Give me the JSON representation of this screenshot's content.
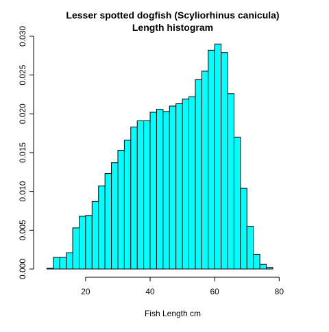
{
  "chart_data": {
    "type": "bar",
    "subtype": "histogram",
    "title": "Lesser spotted dogfish (Scyliorhinus canicula)",
    "subtitle": "Length histogram",
    "xlabel": "Fish Length cm",
    "ylabel": "",
    "xlim": [
      6,
      88
    ],
    "ylim": [
      0,
      0.0307
    ],
    "bin_width": 2,
    "x_ticks": [
      20,
      40,
      60,
      80
    ],
    "x_tick_labels": [
      "20",
      "40",
      "60",
      "80"
    ],
    "y_ticks": [
      0,
      0.005,
      0.01,
      0.015,
      0.02,
      0.025,
      0.03
    ],
    "y_tick_labels": [
      "0.000",
      "0.005",
      "0.010",
      "0.015",
      "0.020",
      "0.025",
      "0.030"
    ],
    "grid": false,
    "legend": "none",
    "bar_color": "#00ffff",
    "bar_edge_color": "#000000",
    "bins": [
      {
        "start": 8,
        "end": 10,
        "density": 0.0001
      },
      {
        "start": 10,
        "end": 12,
        "density": 0.0015
      },
      {
        "start": 12,
        "end": 14,
        "density": 0.0015
      },
      {
        "start": 14,
        "end": 16,
        "density": 0.0021
      },
      {
        "start": 16,
        "end": 18,
        "density": 0.0053
      },
      {
        "start": 18,
        "end": 20,
        "density": 0.0068
      },
      {
        "start": 20,
        "end": 22,
        "density": 0.0069
      },
      {
        "start": 22,
        "end": 24,
        "density": 0.0087
      },
      {
        "start": 24,
        "end": 26,
        "density": 0.0107
      },
      {
        "start": 26,
        "end": 28,
        "density": 0.0123
      },
      {
        "start": 28,
        "end": 30,
        "density": 0.0137
      },
      {
        "start": 30,
        "end": 32,
        "density": 0.0153
      },
      {
        "start": 32,
        "end": 34,
        "density": 0.0166
      },
      {
        "start": 34,
        "end": 36,
        "density": 0.0183
      },
      {
        "start": 36,
        "end": 38,
        "density": 0.0191
      },
      {
        "start": 38,
        "end": 40,
        "density": 0.0191
      },
      {
        "start": 40,
        "end": 42,
        "density": 0.0202
      },
      {
        "start": 42,
        "end": 44,
        "density": 0.0206
      },
      {
        "start": 44,
        "end": 46,
        "density": 0.0203
      },
      {
        "start": 46,
        "end": 48,
        "density": 0.021
      },
      {
        "start": 48,
        "end": 50,
        "density": 0.0213
      },
      {
        "start": 50,
        "end": 52,
        "density": 0.0219
      },
      {
        "start": 52,
        "end": 54,
        "density": 0.0222
      },
      {
        "start": 54,
        "end": 56,
        "density": 0.0244
      },
      {
        "start": 56,
        "end": 58,
        "density": 0.0255
      },
      {
        "start": 58,
        "end": 60,
        "density": 0.0282
      },
      {
        "start": 60,
        "end": 62,
        "density": 0.029
      },
      {
        "start": 62,
        "end": 64,
        "density": 0.0279
      },
      {
        "start": 64,
        "end": 66,
        "density": 0.0226
      },
      {
        "start": 66,
        "end": 68,
        "density": 0.017
      },
      {
        "start": 68,
        "end": 70,
        "density": 0.0104
      },
      {
        "start": 70,
        "end": 72,
        "density": 0.0055
      },
      {
        "start": 72,
        "end": 74,
        "density": 0.0019
      },
      {
        "start": 74,
        "end": 76,
        "density": 0.0006
      },
      {
        "start": 76,
        "end": 78,
        "density": 0.0002
      },
      {
        "start": 78,
        "end": 80,
        "density": 0.0
      },
      {
        "start": 80,
        "end": 82,
        "density": 0.0
      },
      {
        "start": 82,
        "end": 84,
        "density": 0.0
      },
      {
        "start": 84,
        "end": 86,
        "density": 0.0
      },
      {
        "start": 86,
        "end": 88,
        "density": 0.0
      }
    ]
  }
}
